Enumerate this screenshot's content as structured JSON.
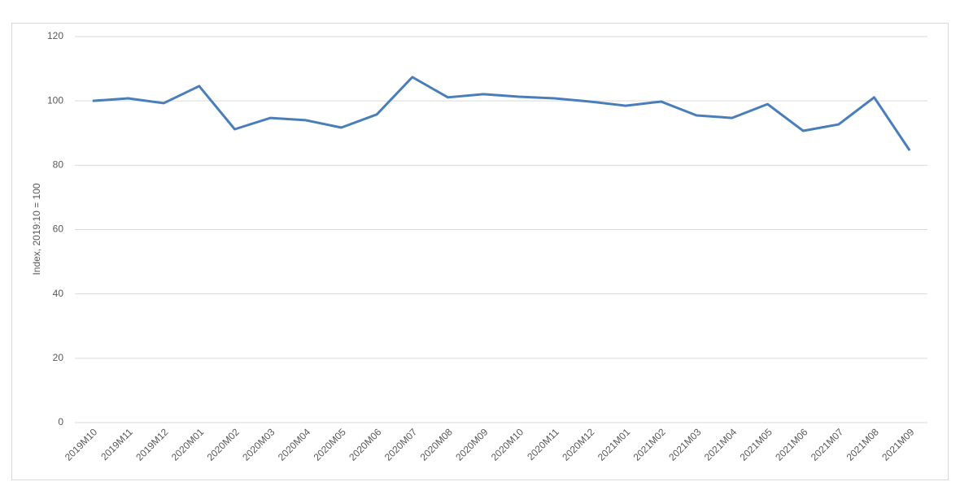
{
  "chart_data": {
    "type": "line",
    "y_label": "Index, 2019:10 = 100",
    "categories": [
      "2019M10",
      "2019M11",
      "2019M12",
      "2020M01",
      "2020M02",
      "2020M03",
      "2020M04",
      "2020M05",
      "2020M06",
      "2020M07",
      "2020M08",
      "2020M09",
      "2020M10",
      "2020M11",
      "2020M12",
      "2021M01",
      "2021M02",
      "2021M03",
      "2021M04",
      "2021M05",
      "2021M06",
      "2021M07",
      "2021M08",
      "2021M09"
    ],
    "series": [
      {
        "name": "Index",
        "color": "#4a7ebb",
        "values": [
          100.0,
          100.8,
          99.3,
          104.6,
          91.2,
          94.7,
          94.0,
          91.7,
          95.8,
          107.4,
          101.1,
          102.1,
          101.3,
          100.8,
          99.8,
          98.5,
          99.8,
          95.5,
          94.7,
          99.0,
          90.7,
          92.7,
          101.1,
          84.6
        ]
      }
    ],
    "ylim": [
      0,
      120
    ],
    "yticks": [
      0,
      20,
      40,
      60,
      80,
      100,
      120
    ],
    "grid": true
  }
}
